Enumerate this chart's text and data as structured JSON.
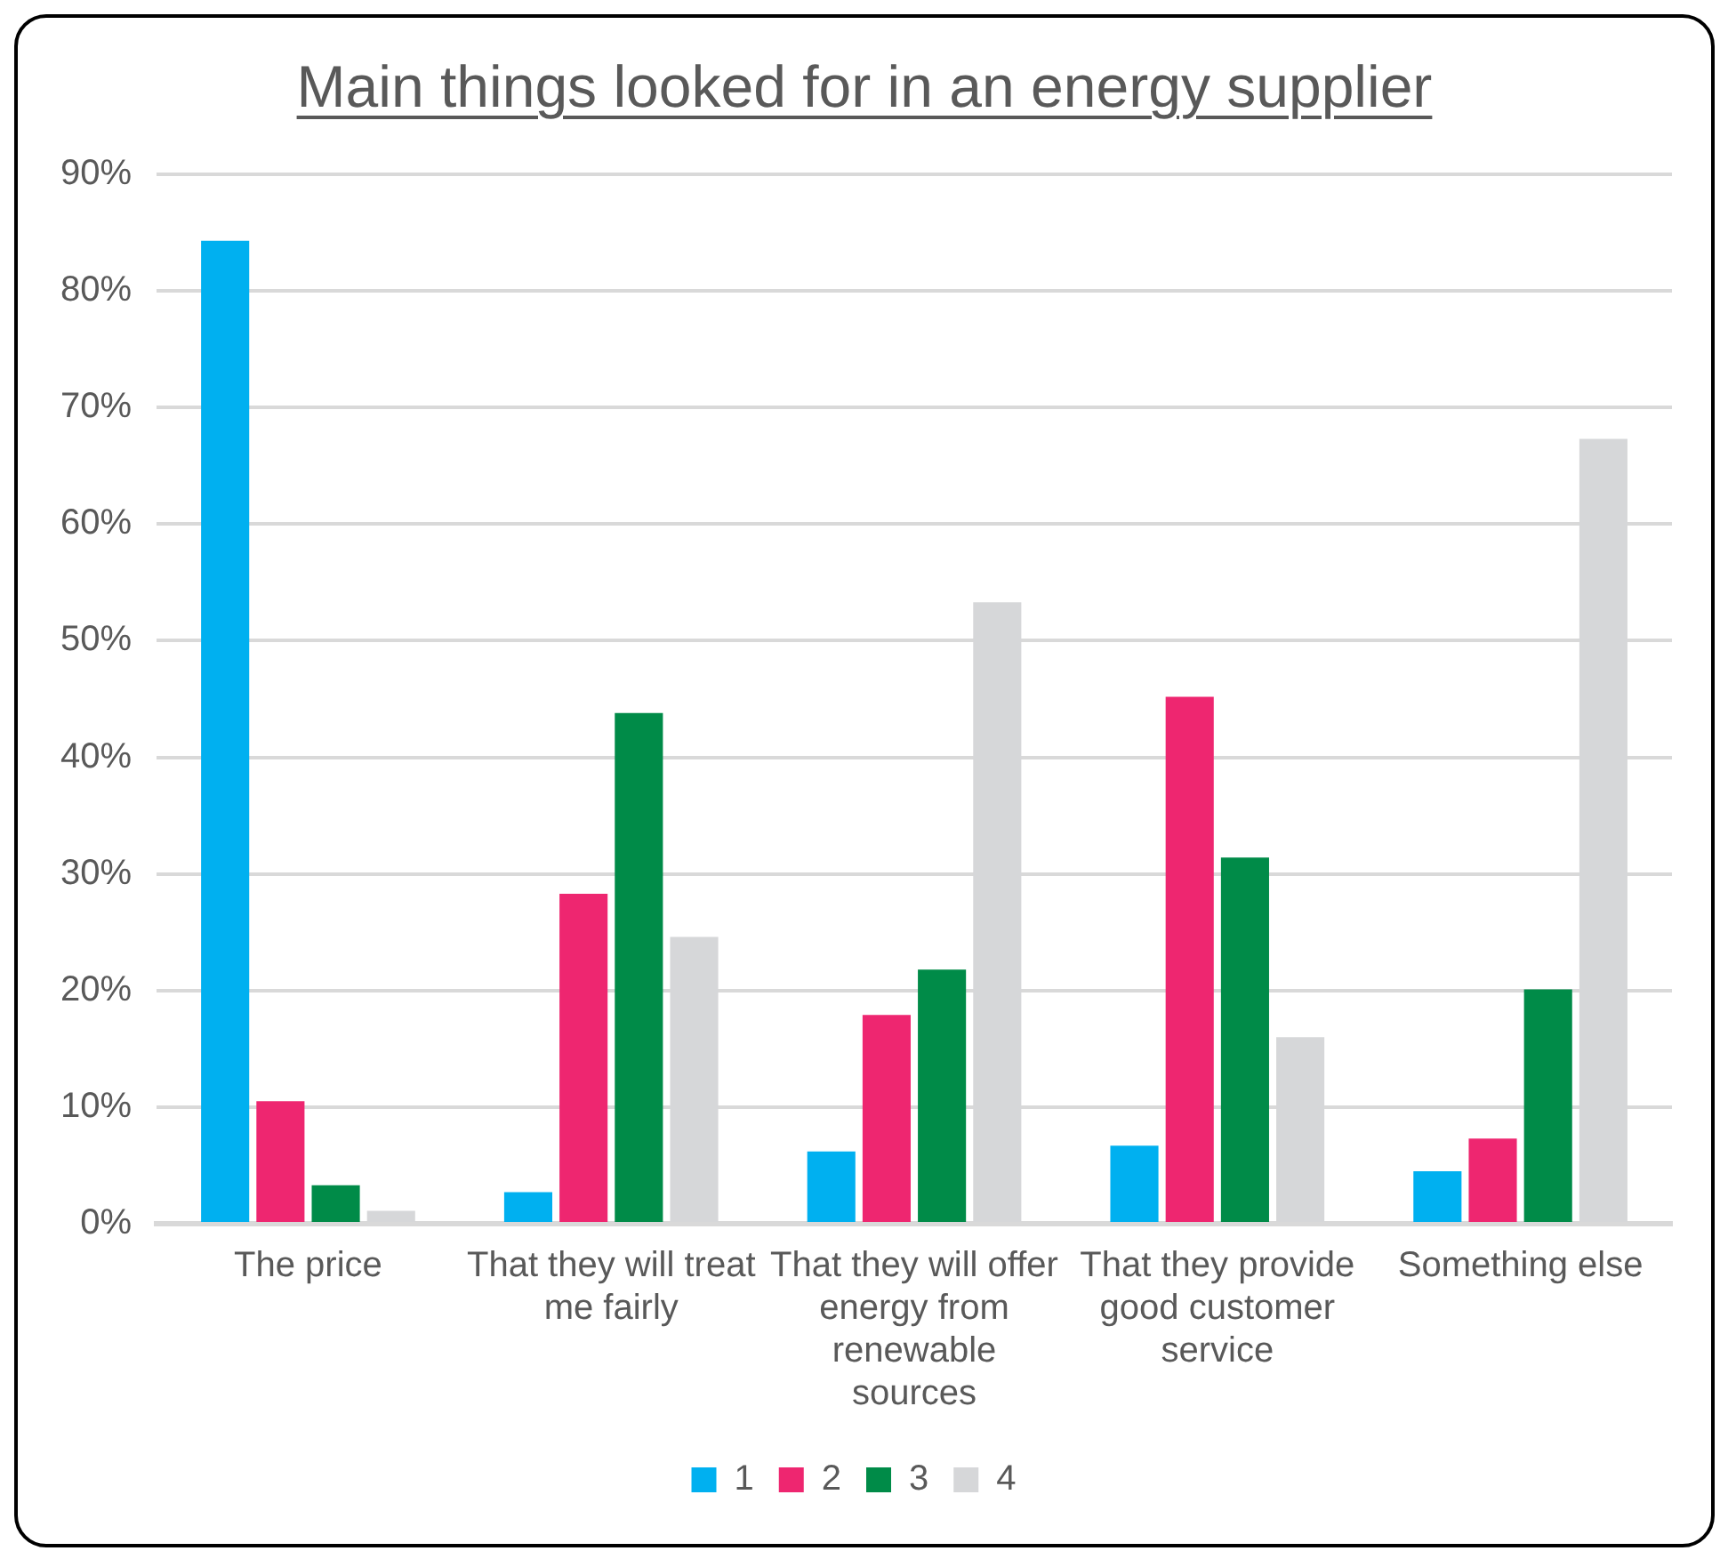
{
  "chart_data": {
    "type": "bar",
    "title": "Main things looked for in an energy supplier",
    "categories": [
      "The price",
      "That they will treat me fairly",
      "That they will offer energy from renewable sources",
      "That they provide good customer service",
      "Something else"
    ],
    "series": [
      {
        "name": "1",
        "color": "#00b0f0",
        "values": [
          84.3,
          2.7,
          6.2,
          6.7,
          4.5
        ]
      },
      {
        "name": "2",
        "color": "#ee2670",
        "values": [
          10.5,
          28.3,
          17.9,
          45.2,
          7.3
        ]
      },
      {
        "name": "3",
        "color": "#008b48",
        "values": [
          3.3,
          43.8,
          21.8,
          31.4,
          20.1
        ]
      },
      {
        "name": "4",
        "color": "#d6d7d9",
        "values": [
          1.1,
          24.6,
          53.3,
          16.0,
          67.3
        ]
      }
    ],
    "ylim": [
      0,
      90
    ],
    "yticks": [
      {
        "value": 0,
        "label": "0%"
      },
      {
        "value": 10,
        "label": "10%"
      },
      {
        "value": 20,
        "label": "20%"
      },
      {
        "value": 30,
        "label": "30%"
      },
      {
        "value": 40,
        "label": "40%"
      },
      {
        "value": 50,
        "label": "50%"
      },
      {
        "value": 60,
        "label": "60%"
      },
      {
        "value": 70,
        "label": "70%"
      },
      {
        "value": 80,
        "label": "80%"
      },
      {
        "value": 90,
        "label": "90%"
      }
    ],
    "grid": "y",
    "legend": "bottom"
  }
}
